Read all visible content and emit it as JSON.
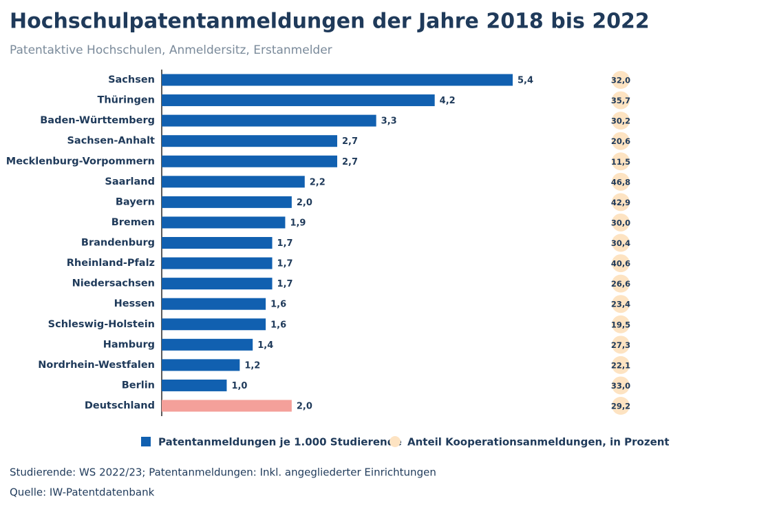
{
  "chart_data": {
    "type": "hbar",
    "title": "Hochschulpatentanmeldungen der Jahre 2018 bis 2022",
    "subtitle": "Patentaktive Hochschulen, Anmeldersitz, Erstanmelder",
    "categories": [
      "Sachsen",
      "Thüringen",
      "Baden-Württemberg",
      "Sachsen-Anhalt",
      "Mecklenburg-Vorpommern",
      "Saarland",
      "Bayern",
      "Bremen",
      "Brandenburg",
      "Rheinland-Pfalz",
      "Niedersachsen",
      "Hessen",
      "Schleswig-Holstein",
      "Hamburg",
      "Nordrhein-Westfalen",
      "Berlin",
      "Deutschland"
    ],
    "series": [
      {
        "name": "Patentanmeldungen je 1.000 Studierende",
        "color": "#1160b0",
        "colors": [
          "#1160b0",
          "#1160b0",
          "#1160b0",
          "#1160b0",
          "#1160b0",
          "#1160b0",
          "#1160b0",
          "#1160b0",
          "#1160b0",
          "#1160b0",
          "#1160b0",
          "#1160b0",
          "#1160b0",
          "#1160b0",
          "#1160b0",
          "#1160b0",
          "#f4a09a"
        ],
        "values": [
          5.4,
          4.2,
          3.3,
          2.7,
          2.7,
          2.2,
          2.0,
          1.9,
          1.7,
          1.7,
          1.7,
          1.6,
          1.6,
          1.4,
          1.2,
          1.0,
          2.0
        ],
        "value_labels": [
          "5,4",
          "4,2",
          "3,3",
          "2,7",
          "2,7",
          "2,2",
          "2,0",
          "1,9",
          "1,7",
          "1,7",
          "1,7",
          "1,6",
          "1,6",
          "1,4",
          "1,2",
          "1,0",
          "2,0"
        ]
      },
      {
        "name": "Anteil Kooperationsanmeldungen, in Prozent",
        "color": "#fde3c2",
        "values": [
          32.0,
          35.7,
          30.2,
          20.6,
          11.5,
          46.8,
          42.9,
          30.0,
          30.4,
          40.6,
          26.6,
          23.4,
          19.5,
          27.3,
          22.1,
          33.0,
          29.2
        ],
        "value_labels": [
          "32,0",
          "35,7",
          "30,2",
          "20,6",
          "11,5",
          "46,8",
          "42,9",
          "30,0",
          "30,4",
          "40,6",
          "26,6",
          "23,4",
          "19,5",
          "27,3",
          "22,1",
          "33,0",
          "29,2"
        ]
      }
    ],
    "notes": [
      "Studierende: WS 2022/23; Patentanmeldungen: Inkl. angegliederter Einrichtungen",
      "Quelle: IW-Patentdatenbank"
    ]
  }
}
